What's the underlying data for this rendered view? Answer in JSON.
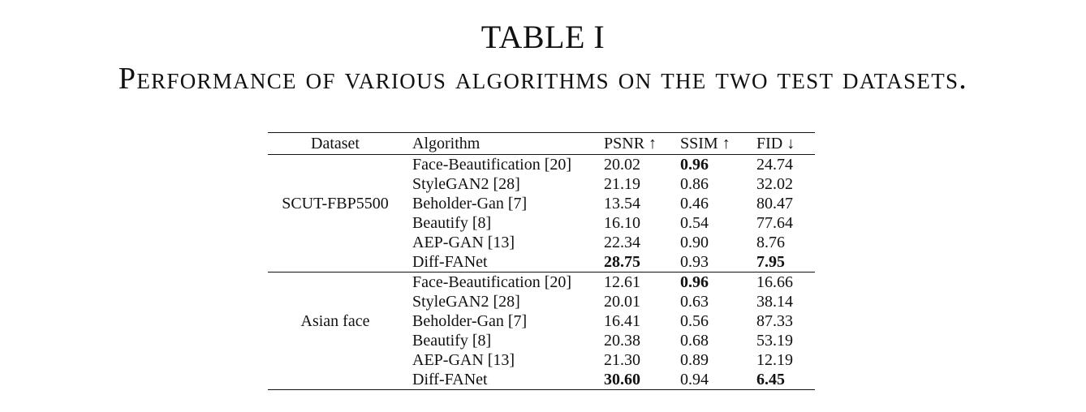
{
  "caption": {
    "label": "TABLE I",
    "title": "Performance of various algorithms on the two test datasets."
  },
  "table": {
    "headers": [
      "Dataset",
      "Algorithm",
      "PSNR ↑",
      "SSIM ↑",
      "FID ↓"
    ],
    "groups": [
      {
        "dataset": "SCUT-FBP5500",
        "rows": [
          {
            "algorithm": "Face-Beautification [20]",
            "psnr": "20.02",
            "ssim": "0.96",
            "fid": "24.74",
            "bold": [
              "ssim"
            ]
          },
          {
            "algorithm": "StyleGAN2 [28]",
            "psnr": "21.19",
            "ssim": "0.86",
            "fid": "32.02",
            "bold": []
          },
          {
            "algorithm": "Beholder-Gan [7]",
            "psnr": "13.54",
            "ssim": "0.46",
            "fid": "80.47",
            "bold": []
          },
          {
            "algorithm": "Beautify [8]",
            "psnr": "16.10",
            "ssim": "0.54",
            "fid": "77.64",
            "bold": []
          },
          {
            "algorithm": "AEP-GAN [13]",
            "psnr": "22.34",
            "ssim": "0.90",
            "fid": "8.76",
            "bold": []
          },
          {
            "algorithm": "Diff-FANet",
            "psnr": "28.75",
            "ssim": "0.93",
            "fid": "7.95",
            "bold": [
              "psnr",
              "fid"
            ]
          }
        ]
      },
      {
        "dataset": "Asian face",
        "rows": [
          {
            "algorithm": "Face-Beautification [20]",
            "psnr": "12.61",
            "ssim": "0.96",
            "fid": "16.66",
            "bold": [
              "ssim"
            ]
          },
          {
            "algorithm": "StyleGAN2 [28]",
            "psnr": "20.01",
            "ssim": "0.63",
            "fid": "38.14",
            "bold": []
          },
          {
            "algorithm": "Beholder-Gan [7]",
            "psnr": "16.41",
            "ssim": "0.56",
            "fid": "87.33",
            "bold": []
          },
          {
            "algorithm": "Beautify [8]",
            "psnr": "20.38",
            "ssim": "0.68",
            "fid": "53.19",
            "bold": []
          },
          {
            "algorithm": "AEP-GAN [13]",
            "psnr": "21.30",
            "ssim": "0.89",
            "fid": "12.19",
            "bold": []
          },
          {
            "algorithm": "Diff-FANet",
            "psnr": "30.60",
            "ssim": "0.94",
            "fid": "6.45",
            "bold": [
              "psnr",
              "fid"
            ]
          }
        ]
      }
    ]
  }
}
